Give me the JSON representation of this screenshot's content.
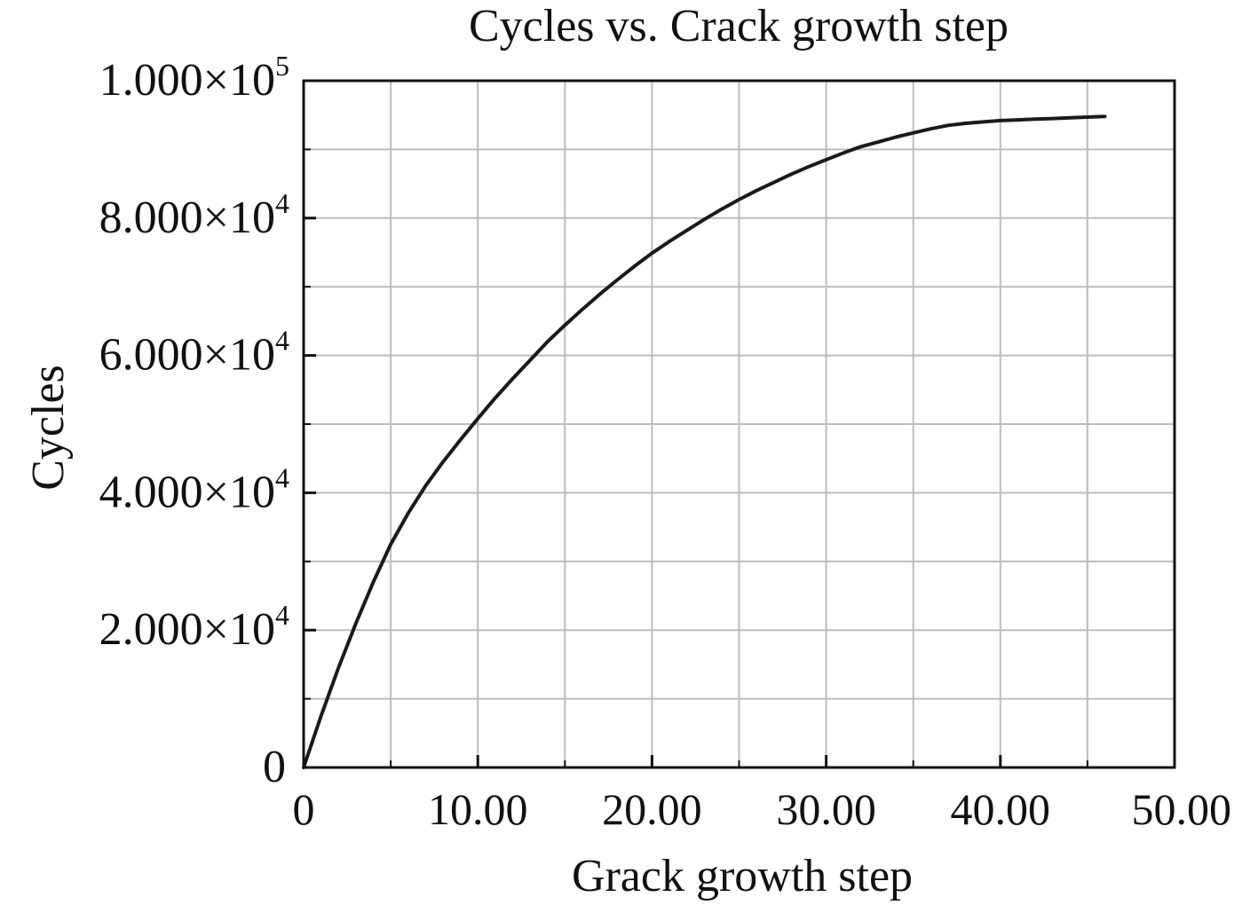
{
  "chart_data": {
    "type": "line",
    "title": "Cycles vs. Crack growth step",
    "xlabel": "Grack growth step",
    "ylabel": "Cycles",
    "xlim": [
      0,
      50
    ],
    "ylim": [
      0,
      100000
    ],
    "grid": true,
    "x_major_ticks": [
      0,
      10,
      20,
      30,
      40,
      50
    ],
    "x_tick_labels": [
      "0",
      "10.00",
      "20.00",
      "30.00",
      "40.00",
      "50.00"
    ],
    "x_minor_ticks": [
      5,
      15,
      25,
      35,
      45
    ],
    "y_major_ticks": [
      0,
      20000,
      40000,
      60000,
      80000,
      100000
    ],
    "y_tick_labels": [
      {
        "mantissa": "0",
        "exp": ""
      },
      {
        "mantissa": "2.000×10",
        "exp": "4"
      },
      {
        "mantissa": "4.000×10",
        "exp": "4"
      },
      {
        "mantissa": "6.000×10",
        "exp": "4"
      },
      {
        "mantissa": "8.000×10",
        "exp": "4"
      },
      {
        "mantissa": "1.000×10",
        "exp": "5"
      }
    ],
    "y_minor_ticks": [
      10000,
      30000,
      50000,
      70000,
      90000
    ],
    "series": [
      {
        "color": "#1a1a1a",
        "x": [
          0,
          1,
          2,
          3,
          4,
          5,
          6,
          7,
          8,
          9,
          10,
          11,
          12,
          13,
          14,
          15,
          16,
          17,
          18,
          19,
          20,
          21,
          22,
          23,
          24,
          25,
          26,
          27,
          28,
          29,
          30,
          31,
          32,
          33,
          34,
          35,
          36,
          37,
          38,
          39,
          40,
          41,
          42,
          43,
          44,
          45,
          46
        ],
        "values": [
          0,
          7500,
          14500,
          21000,
          27000,
          32500,
          37000,
          41000,
          44500,
          47700,
          50800,
          53800,
          56600,
          59300,
          62000,
          64400,
          66700,
          68900,
          71000,
          73000,
          74900,
          76600,
          78200,
          79800,
          81300,
          82700,
          84000,
          85200,
          86400,
          87500,
          88500,
          89500,
          90400,
          91100,
          91800,
          92400,
          93000,
          93500,
          93800,
          94000,
          94200,
          94300,
          94400,
          94500,
          94600,
          94700,
          94800
        ]
      }
    ]
  }
}
